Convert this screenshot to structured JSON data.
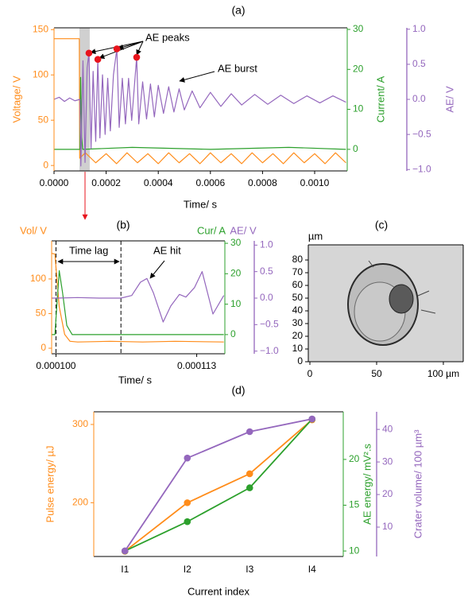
{
  "chart_data": [
    {
      "type": "line",
      "title": "(a)",
      "xlabel": "Time/ s",
      "ylabel": "Voltage/ V",
      "y2label": "Current/ A",
      "y3label": "AE/ V",
      "xlim": [
        0,
        0.001125
      ],
      "xticks": [
        {
          "value": 0,
          "label": "0.0000"
        },
        {
          "value": 0.0002,
          "label": "0.0002"
        },
        {
          "value": 0.0004,
          "label": "0.0004"
        },
        {
          "value": 0.0006,
          "label": "0.0006"
        },
        {
          "value": 0.0008,
          "label": "0.0008"
        },
        {
          "value": 0.001,
          "label": "0.0010"
        }
      ],
      "ylim": [
        -6,
        152
      ],
      "yticks": [
        0,
        50,
        100,
        150
      ],
      "y2lim": [
        -5.4,
        30.4
      ],
      "y2ticks": [
        0,
        10,
        20,
        30
      ],
      "y3lim": [
        -1.02,
        1.02
      ],
      "y3ticks": [
        {
          "value": -1,
          "label": "−1.0"
        },
        {
          "value": -0.5,
          "label": "−0.5"
        },
        {
          "value": 0,
          "label": "0.0"
        },
        {
          "value": 0.5,
          "label": "0.5"
        },
        {
          "value": 1,
          "label": "1.0"
        }
      ],
      "highlight_x": [
        9.76e-05,
        0.000137
      ],
      "highlight_color": "#c8c8c8",
      "annotations": [
        "AE peaks",
        "AE burst"
      ],
      "series": [
        {
          "axis": "y",
          "color": "#ff8c1a",
          "style": "line",
          "x": [
            0,
            9.7e-05,
            9.85e-05,
            0.00012,
            0.00016,
            0.0002,
            0.00024,
            0.00028,
            0.00032,
            0.00036,
            0.0004,
            0.00044,
            0.00048,
            0.00052,
            0.00056,
            0.0006,
            0.00064,
            0.00068,
            0.00072,
            0.00076,
            0.0008,
            0.00084,
            0.00088,
            0.00092,
            0.00096,
            0.001,
            0.00104,
            0.00108,
            0.00112
          ],
          "values": [
            140,
            140,
            8,
            14,
            3,
            13,
            2,
            14,
            3,
            13,
            2,
            14,
            3,
            13,
            2,
            14,
            3,
            13,
            2,
            14,
            3,
            13,
            2,
            14,
            3,
            13,
            2,
            14,
            3
          ]
        },
        {
          "axis": "y2",
          "color": "#2ca02c",
          "style": "line",
          "x": [
            0,
            9.95e-05,
            0.000102,
            0.000106,
            0.00011,
            0.0003,
            0.0006,
            0.0009,
            0.00112
          ],
          "values": [
            0,
            0,
            18,
            3,
            0,
            0.5,
            0,
            0.5,
            0
          ]
        },
        {
          "axis": "y3",
          "color": "#9467bd",
          "style": "line",
          "x": [
            0,
            2e-05,
            4e-05,
            6e-05,
            8e-05,
            9.95e-05,
            0.000103,
            0.000111,
            0.000119,
            0.000127,
            0.000134,
            0.000142,
            0.00015,
            0.00016,
            0.000168,
            0.000176,
            0.000186,
            0.000196,
            0.000206,
            0.000216,
            0.000228,
            0.000241,
            0.00025,
            0.000262,
            0.000274,
            0.000286,
            0.000298,
            0.000317,
            0.000325,
            0.00034,
            0.000355,
            0.00037,
            0.000385,
            0.0004,
            0.00042,
            0.00044,
            0.00046,
            0.00048,
            0.0005,
            0.00053,
            0.00056,
            0.0006,
            0.00064,
            0.00068,
            0.00072,
            0.00077,
            0.00082,
            0.00087,
            0.00092,
            0.00097,
            0.00102,
            0.00107,
            0.00112
          ],
          "values": [
            0,
            0.03,
            -0.03,
            0.02,
            -0.02,
            0,
            -0.95,
            0.55,
            -0.9,
            0.45,
            0.66,
            -0.7,
            0.4,
            -0.6,
            0.57,
            -0.55,
            0.35,
            -0.5,
            0.3,
            -0.45,
            0.35,
            0.72,
            -0.4,
            0.3,
            -0.35,
            0.3,
            -0.3,
            0.6,
            -0.35,
            0.25,
            -0.28,
            0.22,
            -0.25,
            0.2,
            -0.2,
            0.18,
            -0.18,
            0.15,
            -0.15,
            0.12,
            -0.12,
            0.1,
            -0.1,
            0.08,
            -0.08,
            0.07,
            -0.07,
            0.06,
            -0.06,
            0.05,
            -0.05,
            0.05,
            -0.04
          ]
        },
        {
          "axis": "y3",
          "color": "#e8141c",
          "style": "markers",
          "x": [
            0.000134,
            0.000168,
            0.000241,
            0.000317
          ],
          "values": [
            0.66,
            0.57,
            0.72,
            0.6
          ]
        }
      ]
    },
    {
      "type": "line",
      "title": "(b)",
      "xlabel": "Time/ s",
      "ylabel": "Vol/ V",
      "y2label": "Cur/ A",
      "y3label": "AE/ V",
      "xlim": [
        9.96e-05,
        0.0001156
      ],
      "xticks": [
        {
          "value": 0.0001,
          "label": "0.000100"
        },
        {
          "value": 0.000113,
          "label": "0.000113"
        }
      ],
      "ylim": [
        -8,
        155
      ],
      "yticks": [
        0,
        50,
        100
      ],
      "y2lim": [
        -6.3,
        30.8
      ],
      "y2ticks": [
        0,
        10,
        20,
        30
      ],
      "y3lim": [
        -1.05,
        1.08
      ],
      "y3ticks": [
        {
          "value": -1,
          "label": "−1.0"
        },
        {
          "value": -0.5,
          "label": "−0.5"
        },
        {
          "value": 0,
          "label": "0.0"
        },
        {
          "value": 0.5,
          "label": "0.5"
        },
        {
          "value": 1,
          "label": "1.0"
        }
      ],
      "vlines": [
        0.0001,
        0.000106
      ],
      "annotations": [
        "Time lag",
        "AE hit"
      ],
      "series": [
        {
          "axis": "y",
          "color": "#ff8c1a",
          "style": "line",
          "x": [
            9.96e-05,
            9.99e-05,
            0.0001003,
            0.0001008,
            0.0001013,
            0.000102,
            0.000105,
            0.000108,
            0.000111,
            0.0001155
          ],
          "values": [
            137,
            136,
            60,
            20,
            10,
            9,
            10,
            9,
            10,
            9
          ]
        },
        {
          "axis": "y2",
          "color": "#2ca02c",
          "style": "line",
          "x": [
            9.96e-05,
            9.99e-05,
            0.0001003,
            0.0001006,
            0.000101,
            0.0001015,
            0.000103,
            0.000106,
            0.00011,
            0.0001155
          ],
          "values": [
            0,
            0,
            21,
            14,
            3,
            0,
            0,
            0,
            0,
            0
          ]
        },
        {
          "axis": "y3",
          "color": "#9467bd",
          "style": "line",
          "x": [
            9.96e-05,
            0.0001,
            0.000102,
            0.000104,
            0.000106,
            0.000107,
            0.0001078,
            0.0001084,
            0.000109,
            0.0001099,
            0.0001106,
            0.0001114,
            0.000112,
            0.0001128,
            0.0001135,
            0.0001145,
            0.0001155
          ],
          "values": [
            0,
            0,
            0.01,
            0,
            0,
            0.05,
            0.3,
            0.37,
            0.1,
            -0.45,
            -0.15,
            0.07,
            0.02,
            0.2,
            0.5,
            -0.3,
            0.05
          ]
        }
      ]
    },
    {
      "type": "image",
      "title": "(c)",
      "ylabel": "µm",
      "xlim": [
        -1.2,
        114.9
      ],
      "xticks": [
        0,
        50,
        {
          "value": 100,
          "label": "100 µm"
        }
      ],
      "ylim": [
        0,
        91.9
      ],
      "yticks": [
        0,
        10,
        20,
        30,
        40,
        50,
        60,
        70,
        80
      ]
    },
    {
      "type": "line",
      "title": "(d)",
      "xlabel": "Current index",
      "ylabel": "Pulse energy/ µJ",
      "y2label": "AE energy/ mV².s",
      "y3label": "Crater volume/ 100 µm³",
      "categories": [
        "I1",
        "I2",
        "I3",
        "I4"
      ],
      "ylim": [
        131.3,
        316.2
      ],
      "yticks": [
        200,
        300
      ],
      "y2lim": [
        9.4,
        25.2
      ],
      "y2ticks": [
        10,
        15,
        20
      ],
      "y3lim": [
        0.98,
        45.4
      ],
      "y3ticks": [
        10,
        20,
        30,
        40
      ],
      "series": [
        {
          "axis": "y",
          "color": "#ff8c1a",
          "style": "line+markers",
          "values": [
            138,
            200,
            237,
            306
          ]
        },
        {
          "axis": "y2",
          "color": "#2ca02c",
          "style": "line+markers",
          "values": [
            10,
            13.2,
            16.9,
            24.4
          ]
        },
        {
          "axis": "y3",
          "color": "#9467bd",
          "style": "line+markers",
          "values": [
            2.7,
            31.2,
            39.3,
            43.2
          ]
        }
      ]
    }
  ]
}
